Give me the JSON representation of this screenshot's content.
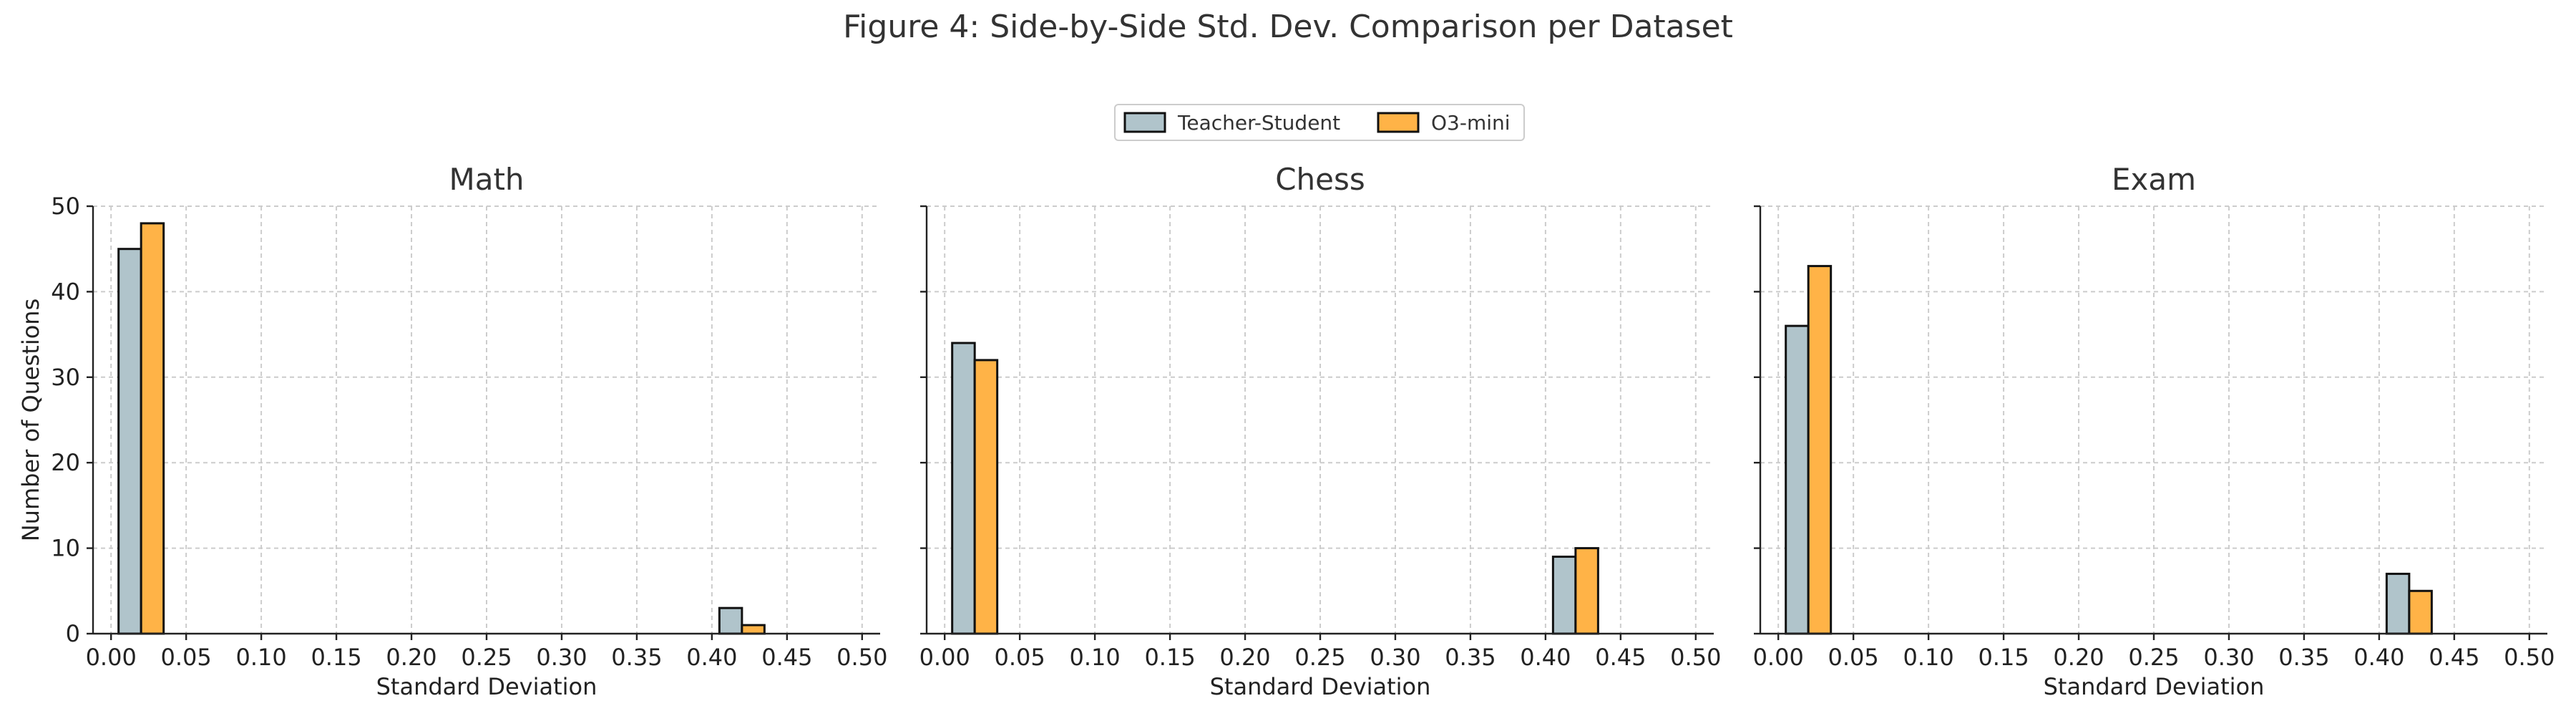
{
  "title": "Figure 4: Side-by-Side Std. Dev. Comparison per Dataset",
  "legend": {
    "placement": "top-center",
    "items": [
      {
        "label": "Teacher-Student",
        "color": "#b0c4cb"
      },
      {
        "label": "O3-mini",
        "color": "#ffb347"
      }
    ]
  },
  "chart_data": [
    {
      "type": "bar",
      "title": "Math",
      "xlabel": "Standard Deviation",
      "ylabel": "Number of Questions",
      "xlim": [
        -0.012,
        0.512
      ],
      "ylim": [
        0,
        50
      ],
      "xticks": [
        "0.00",
        "0.05",
        "0.10",
        "0.15",
        "0.20",
        "0.25",
        "0.30",
        "0.35",
        "0.40",
        "0.45",
        "0.50"
      ],
      "yticks": [
        "0",
        "10",
        "20",
        "30",
        "40",
        "50"
      ],
      "grid": true,
      "bin_width": 0.015,
      "series": [
        {
          "name": "Teacher-Student",
          "color": "#b0c4cb",
          "x": [
            0.0125,
            0.4125
          ],
          "values": [
            45,
            3
          ]
        },
        {
          "name": "O3-mini",
          "color": "#ffb347",
          "x": [
            0.0275,
            0.4275
          ],
          "values": [
            48,
            1
          ]
        }
      ]
    },
    {
      "type": "bar",
      "title": "Chess",
      "xlabel": "Standard Deviation",
      "ylabel": "",
      "xlim": [
        -0.012,
        0.512
      ],
      "ylim": [
        0,
        50
      ],
      "xticks": [
        "0.00",
        "0.05",
        "0.10",
        "0.15",
        "0.20",
        "0.25",
        "0.30",
        "0.35",
        "0.40",
        "0.45",
        "0.50"
      ],
      "yticks": [],
      "grid": true,
      "bin_width": 0.015,
      "series": [
        {
          "name": "Teacher-Student",
          "color": "#b0c4cb",
          "x": [
            0.0125,
            0.4125
          ],
          "values": [
            34,
            9
          ]
        },
        {
          "name": "O3-mini",
          "color": "#ffb347",
          "x": [
            0.0275,
            0.4275
          ],
          "values": [
            32,
            10
          ]
        }
      ]
    },
    {
      "type": "bar",
      "title": "Exam",
      "xlabel": "Standard Deviation",
      "ylabel": "",
      "xlim": [
        -0.012,
        0.512
      ],
      "ylim": [
        0,
        50
      ],
      "xticks": [
        "0.00",
        "0.05",
        "0.10",
        "0.15",
        "0.20",
        "0.25",
        "0.30",
        "0.35",
        "0.40",
        "0.45",
        "0.50"
      ],
      "yticks": [],
      "grid": true,
      "bin_width": 0.015,
      "series": [
        {
          "name": "Teacher-Student",
          "color": "#b0c4cb",
          "x": [
            0.0125,
            0.4125
          ],
          "values": [
            36,
            7
          ]
        },
        {
          "name": "O3-mini",
          "color": "#ffb347",
          "x": [
            0.0275,
            0.4275
          ],
          "values": [
            43,
            5
          ]
        }
      ]
    }
  ]
}
